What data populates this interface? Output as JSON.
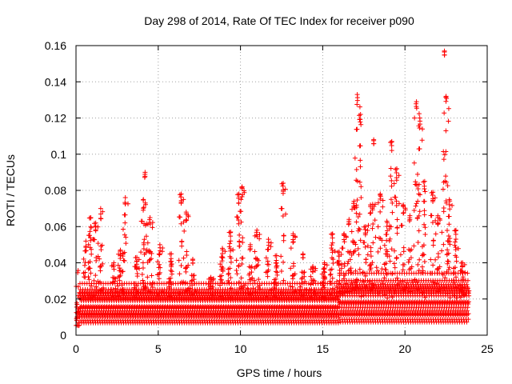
{
  "chart_data": {
    "type": "scatter",
    "title": "Day 298 of 2014, Rate Of TEC Index for receiver p090",
    "xlabel": "GPS time / hours",
    "ylabel": "ROTI / TECUs",
    "xlim": [
      0,
      25
    ],
    "ylim": [
      0,
      0.16
    ],
    "x_ticks": [
      0,
      5,
      10,
      15,
      20,
      25
    ],
    "y_ticks": [
      0,
      0.02,
      0.04,
      0.06,
      0.08,
      0.1,
      0.12,
      0.14,
      0.16
    ],
    "x_tick_labels": [
      "0",
      "5",
      "10",
      "15",
      "20",
      "25"
    ],
    "y_tick_labels": [
      "0",
      "0.02",
      "0.04",
      "0.06",
      "0.08",
      "0.1",
      "0.12",
      "0.14",
      "0.16"
    ],
    "grid": true,
    "marker": "+",
    "series_color": "#ff0000",
    "data_x_range": [
      0,
      23.9
    ],
    "baseline_band": [
      0.005,
      0.03
    ],
    "peaks": [
      {
        "x": 0.6,
        "y": 0.052
      },
      {
        "x": 0.9,
        "y": 0.065
      },
      {
        "x": 1.2,
        "y": 0.062
      },
      {
        "x": 1.5,
        "y": 0.07
      },
      {
        "x": 2.3,
        "y": 0.04
      },
      {
        "x": 2.7,
        "y": 0.047
      },
      {
        "x": 3.0,
        "y": 0.076
      },
      {
        "x": 3.7,
        "y": 0.043
      },
      {
        "x": 4.1,
        "y": 0.075
      },
      {
        "x": 4.2,
        "y": 0.09
      },
      {
        "x": 4.5,
        "y": 0.065
      },
      {
        "x": 5.1,
        "y": 0.05
      },
      {
        "x": 5.8,
        "y": 0.045
      },
      {
        "x": 6.4,
        "y": 0.078
      },
      {
        "x": 6.7,
        "y": 0.068
      },
      {
        "x": 7.1,
        "y": 0.042
      },
      {
        "x": 8.2,
        "y": 0.032
      },
      {
        "x": 8.9,
        "y": 0.048
      },
      {
        "x": 9.4,
        "y": 0.057
      },
      {
        "x": 9.9,
        "y": 0.078
      },
      {
        "x": 10.1,
        "y": 0.082
      },
      {
        "x": 10.6,
        "y": 0.05
      },
      {
        "x": 11.0,
        "y": 0.058
      },
      {
        "x": 11.7,
        "y": 0.053
      },
      {
        "x": 12.2,
        "y": 0.044
      },
      {
        "x": 12.6,
        "y": 0.084
      },
      {
        "x": 13.2,
        "y": 0.056
      },
      {
        "x": 13.8,
        "y": 0.045
      },
      {
        "x": 14.4,
        "y": 0.038
      },
      {
        "x": 15.1,
        "y": 0.04
      },
      {
        "x": 15.6,
        "y": 0.056
      },
      {
        "x": 16.0,
        "y": 0.046
      },
      {
        "x": 16.3,
        "y": 0.056
      },
      {
        "x": 16.6,
        "y": 0.064
      },
      {
        "x": 16.9,
        "y": 0.074
      },
      {
        "x": 17.1,
        "y": 0.133
      },
      {
        "x": 17.3,
        "y": 0.122
      },
      {
        "x": 17.6,
        "y": 0.06
      },
      {
        "x": 17.9,
        "y": 0.072
      },
      {
        "x": 18.1,
        "y": 0.108
      },
      {
        "x": 18.5,
        "y": 0.078
      },
      {
        "x": 18.9,
        "y": 0.063
      },
      {
        "x": 19.2,
        "y": 0.107
      },
      {
        "x": 19.5,
        "y": 0.092
      },
      {
        "x": 19.9,
        "y": 0.072
      },
      {
        "x": 20.3,
        "y": 0.066
      },
      {
        "x": 20.7,
        "y": 0.129
      },
      {
        "x": 20.9,
        "y": 0.12
      },
      {
        "x": 21.2,
        "y": 0.085
      },
      {
        "x": 21.7,
        "y": 0.079
      },
      {
        "x": 22.0,
        "y": 0.066
      },
      {
        "x": 22.4,
        "y": 0.157
      },
      {
        "x": 22.5,
        "y": 0.132
      },
      {
        "x": 22.7,
        "y": 0.075
      },
      {
        "x": 23.1,
        "y": 0.058
      },
      {
        "x": 23.5,
        "y": 0.04
      }
    ]
  }
}
